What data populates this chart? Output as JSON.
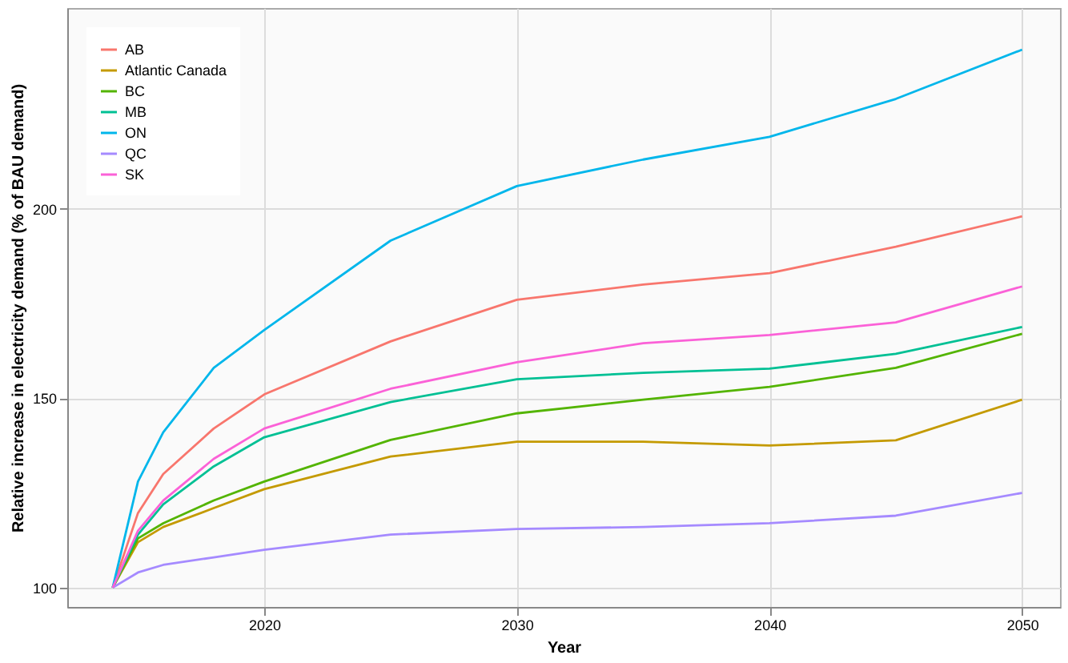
{
  "chart_data": {
    "type": "line",
    "xlabel": "Year",
    "ylabel": "Relative increase in electricity demand (% of BAU demand)",
    "x": [
      2014,
      2015,
      2016,
      2018,
      2020,
      2025,
      2030,
      2035,
      2040,
      2045,
      2050
    ],
    "series": [
      {
        "name": "AB",
        "color": "#f8766d",
        "values": [
          100,
          119.7,
          130,
          142,
          151,
          165,
          176,
          180,
          183,
          190,
          198
        ]
      },
      {
        "name": "Atlantic Canada",
        "color": "#c49a00",
        "values": [
          100,
          112,
          116,
          121,
          126,
          134.6,
          138.5,
          138.5,
          137.5,
          138.9,
          149.6
        ]
      },
      {
        "name": "BC",
        "color": "#53b400",
        "values": [
          100,
          113,
          117,
          123,
          128,
          139,
          146,
          149.6,
          153,
          158,
          167
        ]
      },
      {
        "name": "MB",
        "color": "#00c094",
        "values": [
          100,
          114,
          122,
          132,
          139.7,
          149,
          155,
          156.7,
          157.8,
          161.7,
          168.8
        ]
      },
      {
        "name": "ON",
        "color": "#00b6eb",
        "values": [
          100,
          128,
          141,
          158,
          168,
          191.6,
          206,
          213,
          219,
          229,
          242
        ]
      },
      {
        "name": "QC",
        "color": "#a58aff",
        "values": [
          100,
          104,
          106,
          108,
          110,
          114,
          115.5,
          116,
          117,
          119,
          125
        ]
      },
      {
        "name": "SK",
        "color": "#fb61d7",
        "values": [
          100,
          115,
          123,
          134,
          142,
          152.5,
          159.5,
          164.5,
          166.7,
          170,
          179.5
        ]
      }
    ],
    "xlim": [
      2012.2,
      2051.5
    ],
    "ylim": [
      94.9,
      253
    ],
    "xticks": [
      2020,
      2030,
      2040,
      2050
    ],
    "yticks": [
      100,
      150,
      200
    ],
    "grid": true,
    "legend": "top left",
    "marker": "none",
    "line_style": "solid"
  }
}
